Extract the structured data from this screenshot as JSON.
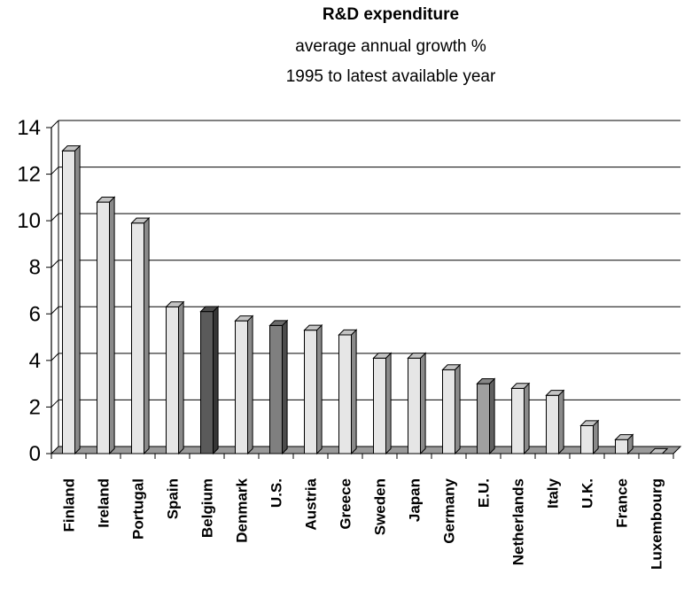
{
  "chart_data": {
    "type": "bar",
    "title": "R&D expenditure",
    "subtitle_lines": [
      "average annual growth %",
      "1995 to latest available year"
    ],
    "xlabel": "",
    "ylabel": "",
    "ylim": [
      0,
      14
    ],
    "yticks": [
      "0",
      "2",
      "4",
      "6",
      "8",
      "10",
      "12",
      "14"
    ],
    "grid": true,
    "categories": [
      "Finland",
      "Ireland",
      "Portugal",
      "Spain",
      "Belgium",
      "Denmark",
      "U.S.",
      "Austria",
      "Greece",
      "Sweden",
      "Japan",
      "Germany",
      "E.U.",
      "Netherlands",
      "Italy",
      "U.K.",
      "France",
      "Luxembourg"
    ],
    "values": [
      13.0,
      10.8,
      9.9,
      6.3,
      6.1,
      5.7,
      5.5,
      5.3,
      5.1,
      4.1,
      4.1,
      3.6,
      3.0,
      2.8,
      2.5,
      1.2,
      0.6,
      0.0
    ],
    "colors": {
      "default": "#e6e6e6",
      "highlight_dark": "#5a5a5a",
      "highlight_mid": "#7f7f7f",
      "highlight_light": "#a0a0a0",
      "floor": "#9a9a9a"
    },
    "bar_colors": [
      "default",
      "default",
      "default",
      "default",
      "highlight_dark",
      "default",
      "highlight_mid",
      "default",
      "default",
      "default",
      "default",
      "default",
      "highlight_light",
      "default",
      "default",
      "default",
      "default",
      "default"
    ]
  }
}
